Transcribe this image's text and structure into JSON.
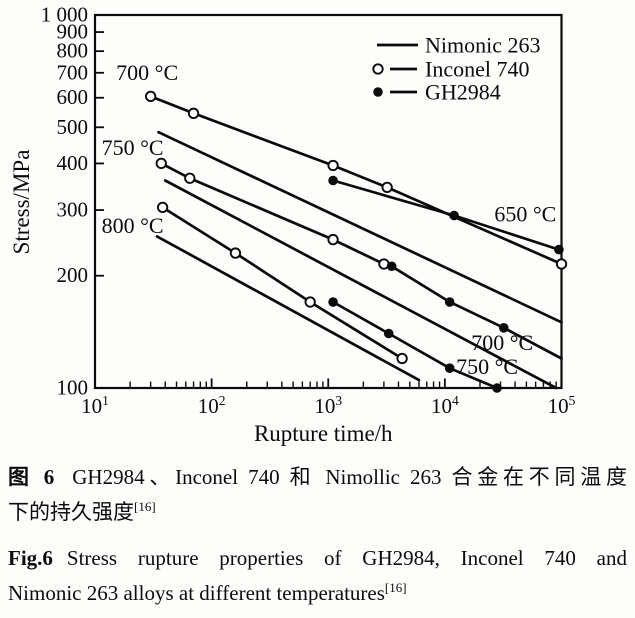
{
  "figure": {
    "caption_zh_bold": "图 6",
    "caption_zh_line1": "GH2984、Inconel 740 和 Nimollic 263 合金在不同温度",
    "caption_zh_line2": "下的持久强度",
    "caption_zh_sup": "[16]",
    "caption_en_bold": "Fig.6",
    "caption_en_line1": "Stress rupture properties of GH2984, Inconel 740 and",
    "caption_en_line2": "Nimonic 263 alloys at different temperatures",
    "caption_en_sup": "[16]"
  },
  "chart_data": {
    "type": "line",
    "title": "",
    "xlabel": "Rupture time/h",
    "ylabel": "Stress/MPa",
    "x_scale": "log",
    "y_scale": "log",
    "xlim": [
      10,
      100000
    ],
    "ylim": [
      100,
      1000
    ],
    "grid": false,
    "legend_position": "top-right-inside",
    "line_color": "#0b0b0b",
    "x_ticks": [
      {
        "value": 10,
        "base": "10",
        "exp": "1"
      },
      {
        "value": 100,
        "base": "10",
        "exp": "2"
      },
      {
        "value": 1000,
        "base": "10",
        "exp": "3"
      },
      {
        "value": 10000,
        "base": "10",
        "exp": "4"
      },
      {
        "value": 100000,
        "base": "10",
        "exp": "5"
      }
    ],
    "y_ticks": [
      {
        "value": 1000,
        "label": "1 000"
      },
      {
        "value": 900,
        "label": "900"
      },
      {
        "value": 800,
        "label": "800"
      },
      {
        "value": 700,
        "label": "700"
      },
      {
        "value": 600,
        "label": "600"
      },
      {
        "value": 500,
        "label": "500"
      },
      {
        "value": 400,
        "label": "400"
      },
      {
        "value": 300,
        "label": "300"
      },
      {
        "value": 200,
        "label": "200"
      },
      {
        "value": 100,
        "label": "100"
      }
    ],
    "legend": [
      {
        "label": "Nimonic 263",
        "marker": "none"
      },
      {
        "label": "Inconel 740",
        "marker": "open"
      },
      {
        "label": "GH2984",
        "marker": "filled"
      }
    ],
    "series": [
      {
        "name": "Inconel 740 650 °C",
        "alloy": "Inconel 740",
        "temperature_c": 650,
        "marker": "open",
        "points": [
          [
            30,
            605
          ],
          [
            70,
            545
          ],
          [
            1100,
            395
          ],
          [
            3200,
            345
          ],
          [
            100000,
            215
          ]
        ]
      },
      {
        "name": "GH2984 650 °C",
        "alloy": "GH2984",
        "temperature_c": 650,
        "marker": "filled",
        "points": [
          [
            1100,
            360
          ],
          [
            12000,
            290
          ],
          [
            95000,
            235
          ]
        ]
      },
      {
        "name": "Nimonic 263 700 °C",
        "alloy": "Nimonic 263",
        "temperature_c": 700,
        "marker": "none",
        "points": [
          [
            35,
            485
          ],
          [
            100000,
            150
          ]
        ]
      },
      {
        "name": "Inconel 740 700 °C",
        "alloy": "Inconel 740",
        "temperature_c": 700,
        "marker": "open",
        "points": [
          [
            37,
            400
          ],
          [
            65,
            365
          ],
          [
            1100,
            250
          ],
          [
            3000,
            215
          ]
        ]
      },
      {
        "name": "GH2984 700 °C",
        "alloy": "GH2984",
        "temperature_c": 700,
        "marker": "filled",
        "no_last_marker": true,
        "points": [
          [
            3500,
            212
          ],
          [
            11000,
            170
          ],
          [
            32000,
            145
          ],
          [
            100000,
            120
          ]
        ]
      },
      {
        "name": "Nimonic 263 750 °C",
        "alloy": "Nimonic 263",
        "temperature_c": 750,
        "marker": "none",
        "points": [
          [
            40,
            360
          ],
          [
            90000,
            100
          ]
        ]
      },
      {
        "name": "Inconel 740 750 °C",
        "alloy": "Inconel 740",
        "temperature_c": 750,
        "marker": "open",
        "points": [
          [
            38,
            305
          ],
          [
            160,
            230
          ],
          [
            700,
            170
          ],
          [
            4300,
            120
          ]
        ]
      },
      {
        "name": "GH2984 750 °C",
        "alloy": "GH2984",
        "temperature_c": 750,
        "marker": "filled",
        "points": [
          [
            1100,
            170
          ],
          [
            3300,
            140
          ],
          [
            11000,
            113
          ],
          [
            28000,
            100
          ]
        ]
      },
      {
        "name": "Nimonic 263 800 °C",
        "alloy": "Nimonic 263",
        "temperature_c": 800,
        "marker": "none",
        "points": [
          [
            34,
            255
          ],
          [
            6000,
            105
          ]
        ]
      }
    ],
    "annotations": [
      {
        "text": "700 °C",
        "t": 28,
        "stress": 700
      },
      {
        "text": "750 °C",
        "t": 21,
        "stress": 440
      },
      {
        "text": "800 °C",
        "t": 21,
        "stress": 272
      },
      {
        "text": "650 °C",
        "t": 49000,
        "stress": 292
      },
      {
        "text": "700 °C",
        "t": 31000,
        "stress": 132
      },
      {
        "text": "750 °C",
        "t": 23000,
        "stress": 114
      }
    ]
  }
}
